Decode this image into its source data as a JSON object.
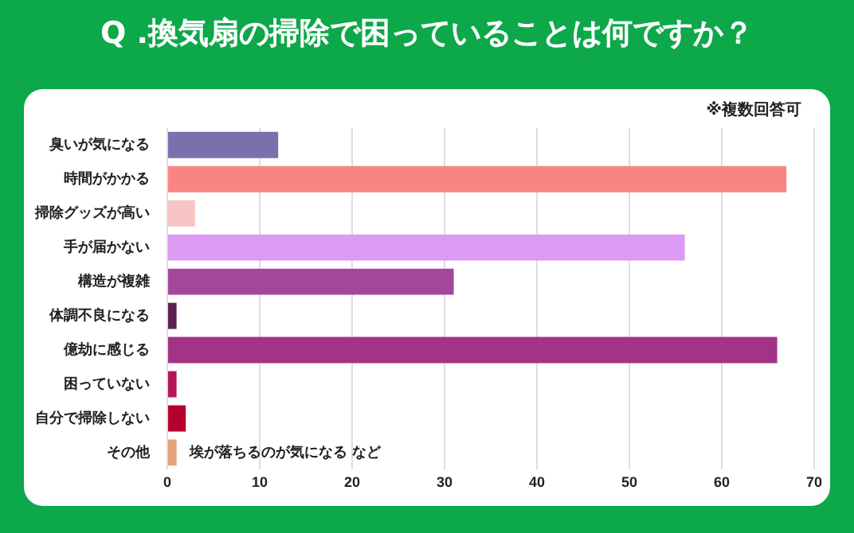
{
  "chart_data": {
    "type": "bar",
    "orientation": "horizontal",
    "title": "Q .換気扇の掃除で困っていることは何ですか？",
    "categories": [
      "臭いが気になる",
      "時間がかかる",
      "掃除グッズが高い",
      "手が届かない",
      "構造が複雑",
      "体調不良になる",
      "億劫に感じる",
      "困っていない",
      "自分で掃除しない",
      "その他"
    ],
    "values": [
      12,
      67,
      3,
      56,
      31,
      1,
      66,
      1,
      2,
      1
    ],
    "colors": [
      "#7b6fae",
      "#f98583",
      "#f7c4c4",
      "#dd9af2",
      "#a4479a",
      "#5a2050",
      "#a23387",
      "#b5145c",
      "#b8002f",
      "#e6a178"
    ],
    "xlim": [
      0,
      70
    ],
    "xticks": [
      0,
      10,
      20,
      30,
      40,
      50,
      60,
      70
    ],
    "grid": "x",
    "legend": false,
    "annotations": [
      "※複数回答可",
      {
        "text": "埃が落ちるのが気になる など",
        "x": 1,
        "y": "その他"
      }
    ]
  }
}
